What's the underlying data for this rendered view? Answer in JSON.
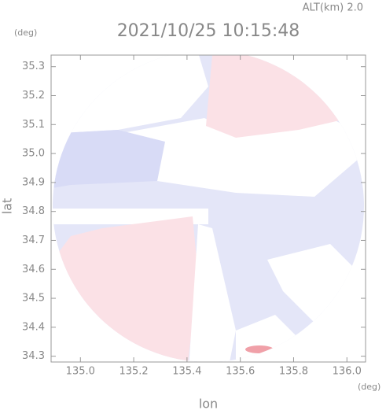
{
  "chart_data": {
    "type": "map",
    "title": "2021/10/25 10:15:48",
    "subtitle": "ALT(km)  2.0",
    "x_label": "lon",
    "y_label": "lat",
    "x_unit": "(deg)",
    "y_unit": "(deg)",
    "xlim": [
      134.89,
      136.07
    ],
    "xticks": [
      {
        "value": 135,
        "label": "135.0"
      },
      135.2,
      135.4,
      135.6,
      135.8,
      {
        "value": 136,
        "label": "136.0"
      }
    ],
    "ylim": [
      34.28,
      35.34
    ],
    "yticks": [
      34.3,
      34.4,
      34.5,
      34.6,
      34.7,
      34.8,
      34.9,
      {
        "value": 35,
        "label": "35.0"
      },
      35.1,
      35.2,
      35.3
    ],
    "axis_color": "#999999"
  }
}
